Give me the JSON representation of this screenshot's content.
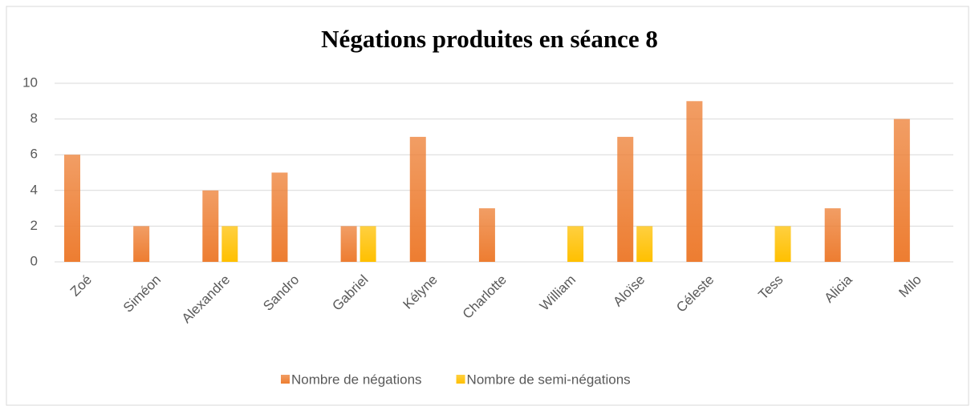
{
  "chart_data": {
    "type": "bar",
    "title": "Négations produites en séance 8",
    "categories": [
      "Zoé",
      "Siméon",
      "Alexandre",
      "Sandro",
      "Gabriel",
      "Kélyne",
      "Charlotte",
      "William",
      "Aloïse",
      "Céleste",
      "Tess",
      "Alicia",
      "Milo"
    ],
    "series": [
      {
        "name": "Nombre de négations",
        "color": "#ed7d31",
        "values": [
          6,
          2,
          4,
          5,
          2,
          7,
          3,
          0,
          7,
          9,
          0,
          3,
          8
        ]
      },
      {
        "name": "Nombre de semi-négations",
        "color": "#ffc000",
        "values": [
          0,
          0,
          2,
          0,
          2,
          0,
          0,
          2,
          2,
          0,
          2,
          0,
          0
        ]
      }
    ],
    "ylim": [
      0,
      10
    ],
    "yticks": [
      0,
      2,
      4,
      6,
      8,
      10
    ],
    "grid": true,
    "legend": "bottom"
  }
}
